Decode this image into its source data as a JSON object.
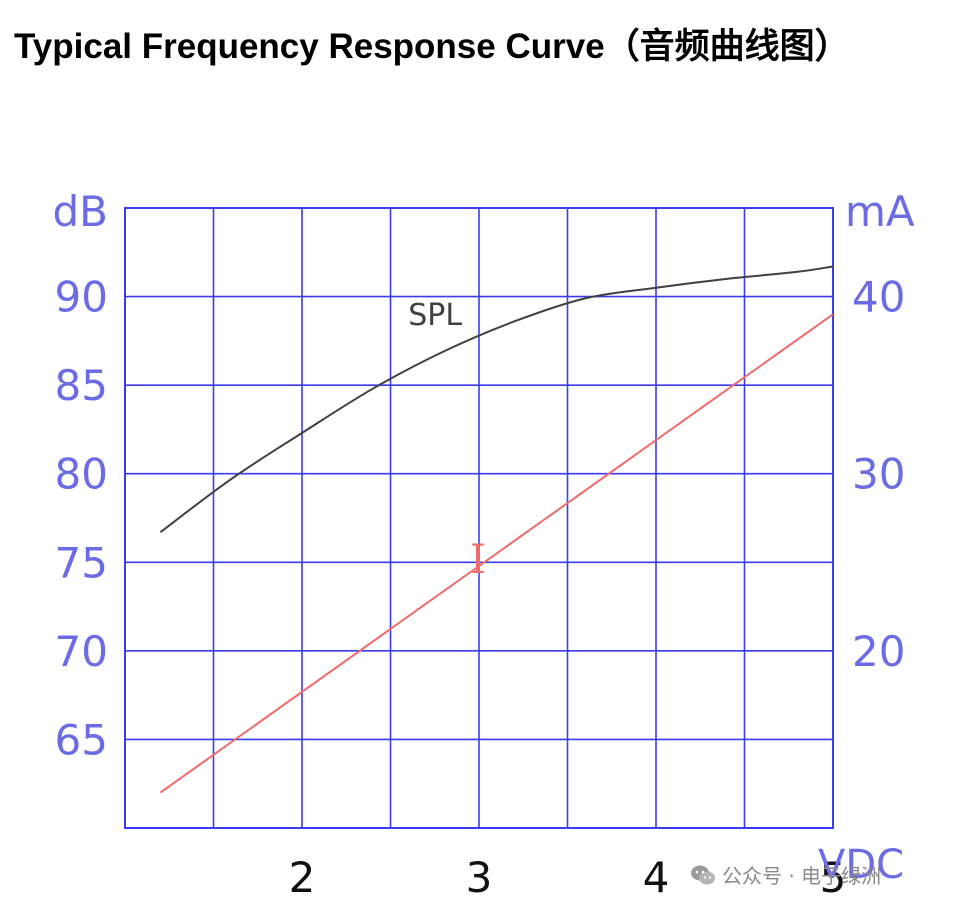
{
  "title": {
    "main": "Typical Frequency Response Curve",
    "cn": "（音频曲线图）"
  },
  "watermark": {
    "text": "公众号 · 电子绿洲",
    "icon": "wechat-logo-icon"
  },
  "colors": {
    "grid": "#3b3bf0",
    "axis_text": "#6b6be6",
    "spl": "#404040",
    "current": "#f06a6a",
    "x_text": "#111111"
  },
  "chart_data": {
    "type": "line",
    "x_axis": {
      "label": "VDC",
      "ticks": [
        2,
        3,
        4,
        5
      ],
      "range": [
        1.0,
        5.0
      ]
    },
    "y_left": {
      "label": "dB",
      "ticks": [
        90,
        85,
        80,
        75,
        70,
        65
      ],
      "range": [
        60,
        95
      ]
    },
    "y_right": {
      "label": "mA",
      "ticks": [
        40,
        30,
        20
      ],
      "range": [
        10,
        45
      ]
    },
    "grid": true,
    "series": [
      {
        "name": "SPL",
        "axis": "left",
        "points": [
          [
            1.2,
            76.7
          ],
          [
            1.6,
            79.7
          ],
          [
            2.0,
            82.3
          ],
          [
            2.4,
            84.8
          ],
          [
            2.8,
            86.9
          ],
          [
            3.2,
            88.6
          ],
          [
            3.6,
            89.9
          ],
          [
            4.0,
            90.5
          ],
          [
            4.4,
            91.0
          ],
          [
            4.8,
            91.4
          ],
          [
            5.0,
            91.7
          ]
        ]
      },
      {
        "name": "I",
        "axis": "right",
        "points": [
          [
            1.2,
            12.0
          ],
          [
            5.0,
            39.0
          ]
        ]
      }
    ]
  }
}
